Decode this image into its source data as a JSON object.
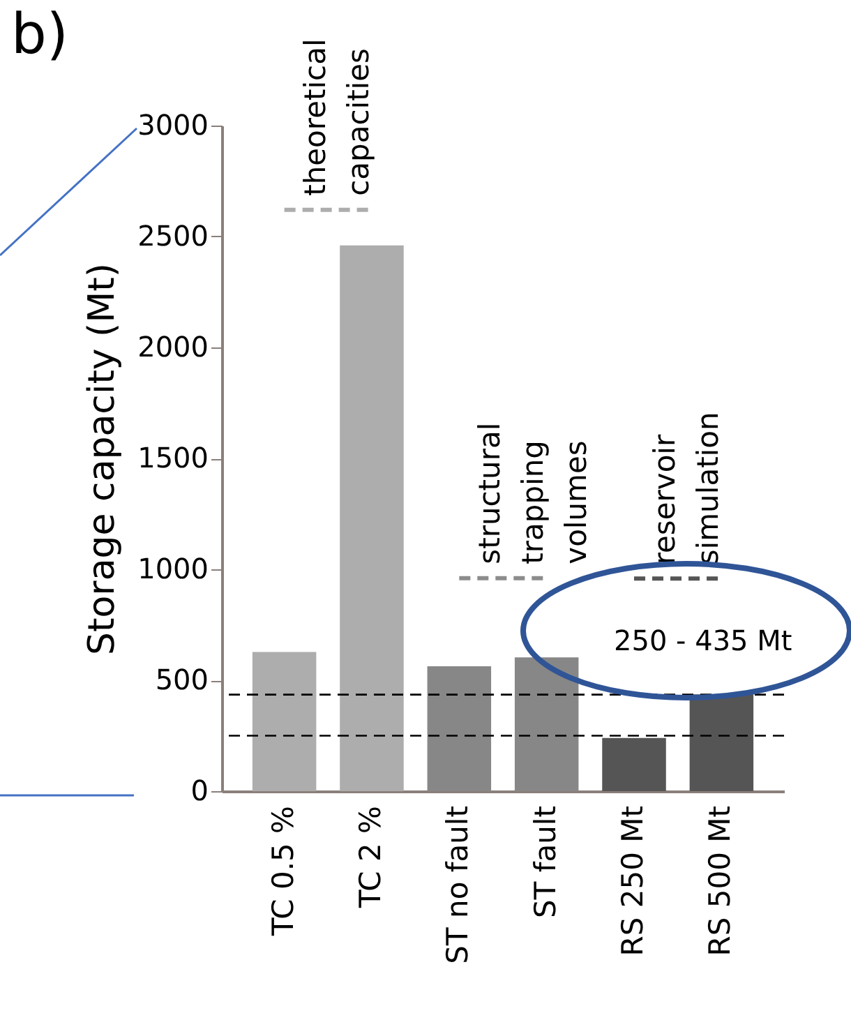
{
  "chart_data": {
    "type": "bar",
    "title": "b)",
    "ylabel": "Storage capacity (Mt)",
    "categories": [
      "TC 0.5 %",
      "TC 2 %",
      "ST no fault",
      "ST fault",
      "RS 250 Mt",
      "RS 500 Mt"
    ],
    "values": [
      627,
      2460,
      563,
      603,
      240,
      436
    ],
    "colors": [
      "#adadad",
      "#adadad",
      "#878787",
      "#878787",
      "#555555",
      "#555555"
    ],
    "ylim": [
      0,
      3000
    ],
    "yticks": [
      0,
      500,
      1000,
      1500,
      2000,
      2500,
      3000
    ],
    "grid": false,
    "series": [
      {
        "type": "line",
        "x": [
          "TC 0.5 %",
          "TC 2 %"
        ],
        "values": [
          2620,
          2620
        ],
        "color": "#adadad",
        "line_style": "dashed"
      },
      {
        "type": "line",
        "x": [
          "ST no fault",
          "ST fault"
        ],
        "values": [
          960,
          960
        ],
        "color": "#8c8c8c",
        "line_style": "dashed"
      },
      {
        "type": "line",
        "x": [
          "RS 250 Mt",
          "RS 500 Mt"
        ],
        "values": [
          958,
          958
        ],
        "color": "#555555",
        "line_style": "dashed"
      }
    ],
    "ref_lines": [
      {
        "axis": "y",
        "value": 435,
        "color": "#000000",
        "line_style": "dashed"
      },
      {
        "axis": "y",
        "value": 250,
        "color": "#000000",
        "line_style": "dashed"
      }
    ],
    "annotations": [
      {
        "text": "theoretical capacities",
        "x": "TC 0.5 %",
        "y": 2620
      },
      {
        "text": "structural trapping volumes",
        "x": "ST no fault",
        "y": 960
      },
      {
        "text": "reservoir simulation",
        "x": "RS 250 Mt",
        "y": 958
      },
      "250 - 435 Mt"
    ]
  }
}
